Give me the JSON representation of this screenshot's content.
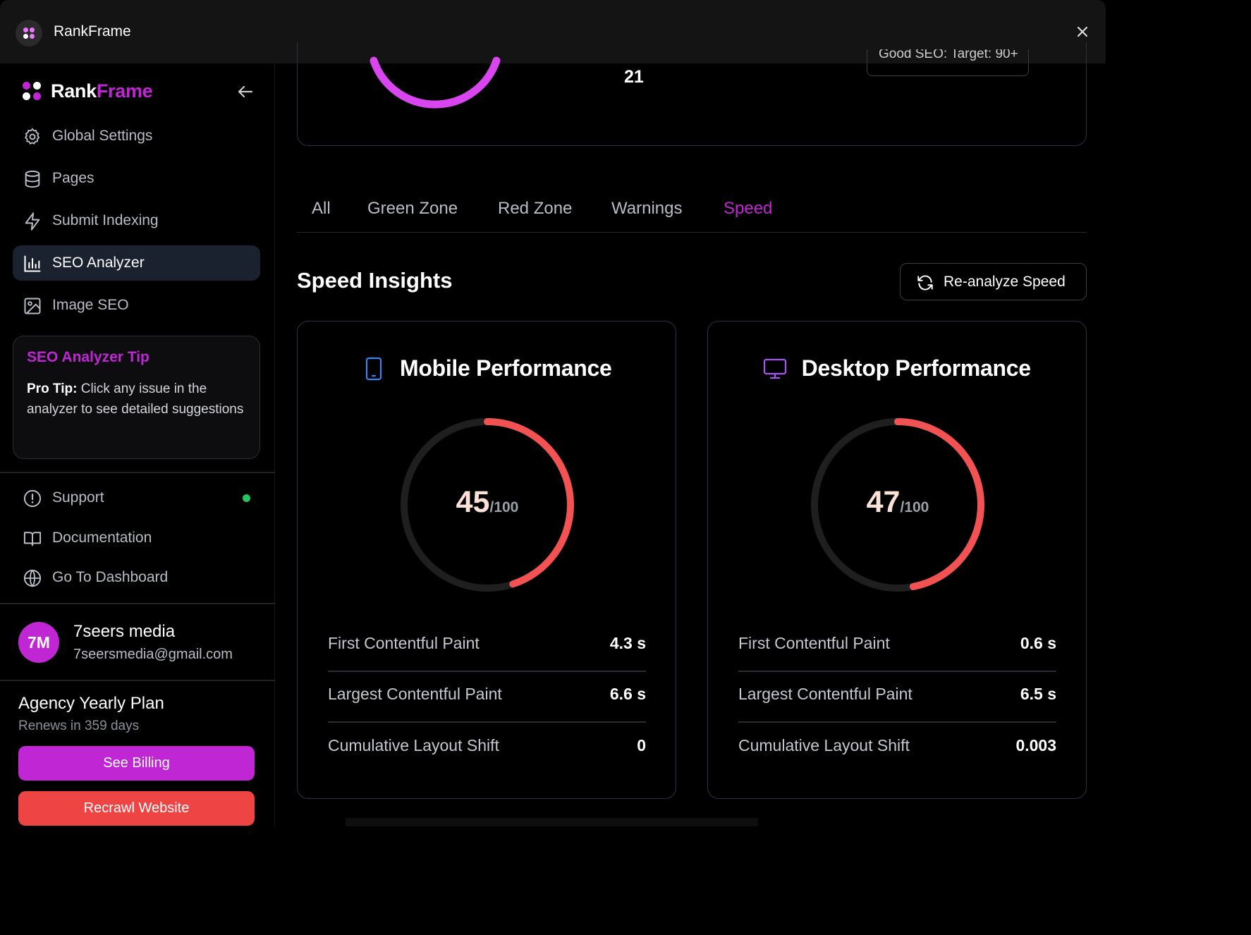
{
  "window": {
    "title": "RankFrame"
  },
  "brand": {
    "part1": "Rank",
    "part2": "Frame",
    "accent": "#c026d3"
  },
  "sidebar": {
    "items": [
      {
        "label": "Global Settings",
        "icon": "gear-icon"
      },
      {
        "label": "Pages",
        "icon": "database-icon"
      },
      {
        "label": "Submit Indexing",
        "icon": "lightning-icon"
      },
      {
        "label": "SEO Analyzer",
        "icon": "bar-chart-icon",
        "active": true
      },
      {
        "label": "Image SEO",
        "icon": "image-icon"
      }
    ],
    "tip": {
      "title": "SEO Analyzer Tip",
      "bold": "Pro Tip:",
      "text": " Click any issue in the analyzer to see detailed suggestions"
    },
    "secondary": [
      {
        "label": "Support",
        "icon": "alert-circle-icon",
        "status": "online"
      },
      {
        "label": "Documentation",
        "icon": "book-icon"
      },
      {
        "label": "Go To Dashboard",
        "icon": "globe-icon"
      }
    ],
    "user": {
      "initials": "7M",
      "name": "7seers media",
      "email": "7seersmedia@gmail.com"
    },
    "plan": {
      "name": "Agency Yearly Plan",
      "renews": "Renews in 359 days",
      "billing_label": "See Billing",
      "recrawl_label": "Recrawl Website"
    }
  },
  "top_card": {
    "number": "21",
    "pill_text": "Good SEO: Target: 90+"
  },
  "tabs": [
    {
      "label": "All"
    },
    {
      "label": "Green Zone"
    },
    {
      "label": "Red Zone"
    },
    {
      "label": "Warnings"
    },
    {
      "label": "Speed",
      "active": true
    }
  ],
  "speed": {
    "title": "Speed Insights",
    "reanalyze_label": "Re-analyze Speed",
    "cards": [
      {
        "title": "Mobile Performance",
        "icon": "smartphone-icon",
        "score": 45,
        "score_text": "45",
        "max_text": "/100",
        "metrics": [
          {
            "name": "First Contentful Paint",
            "value": "4.3 s"
          },
          {
            "name": "Largest Contentful Paint",
            "value": "6.6 s"
          },
          {
            "name": "Cumulative Layout Shift",
            "value": "0"
          }
        ]
      },
      {
        "title": "Desktop Performance",
        "icon": "monitor-icon",
        "score": 47,
        "score_text": "47",
        "max_text": "/100",
        "metrics": [
          {
            "name": "First Contentful Paint",
            "value": "0.6 s"
          },
          {
            "name": "Largest Contentful Paint",
            "value": "6.5 s"
          },
          {
            "name": "Cumulative Layout Shift",
            "value": "0.003"
          }
        ]
      }
    ],
    "gauge_color": "#f25252",
    "track_color": "#1f1f1f"
  }
}
